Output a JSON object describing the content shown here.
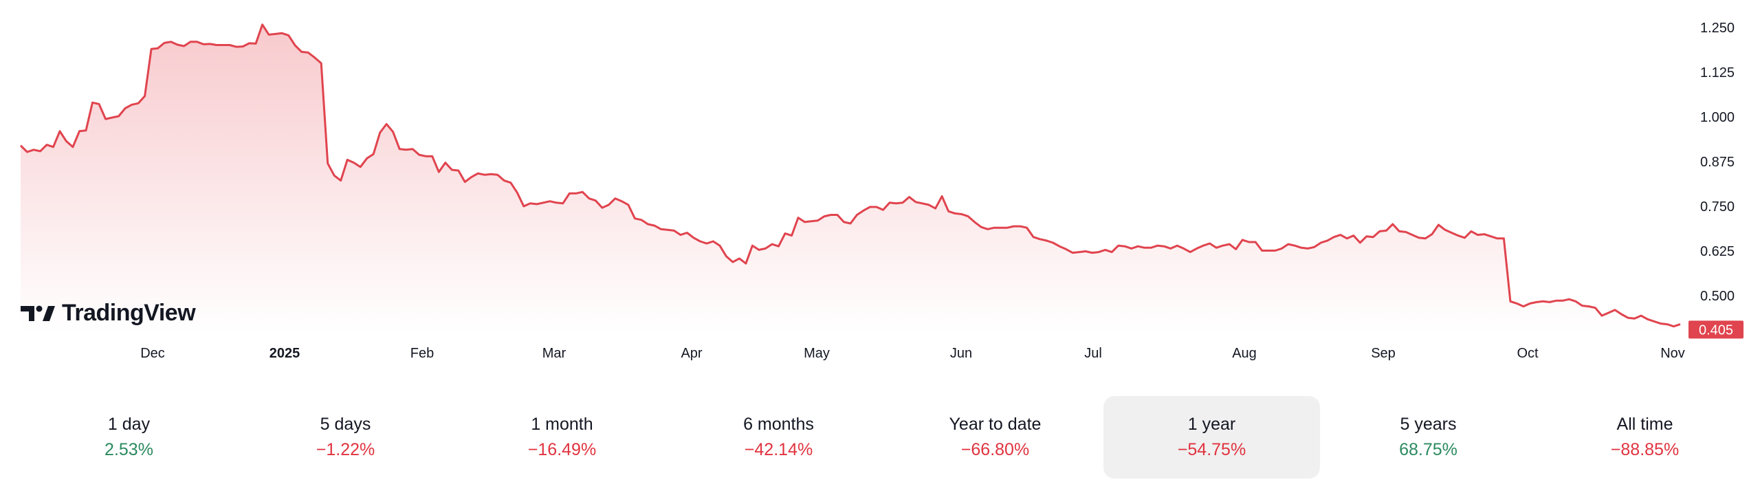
{
  "chart_data": {
    "type": "area",
    "x_ticks": [
      "Dec",
      "2025",
      "Feb",
      "Mar",
      "Apr",
      "May",
      "Jun",
      "Jul",
      "Aug",
      "Sep",
      "Oct",
      "Nov"
    ],
    "y_ticks": [
      "1.250",
      "1.125",
      "1.000",
      "0.875",
      "0.750",
      "0.625",
      "0.500"
    ],
    "ylim": [
      0.38,
      1.28
    ],
    "last_price": "0.405",
    "line_color": "#e0444e",
    "values": [
      0.92,
      0.902,
      0.908,
      0.904,
      0.922,
      0.916,
      0.96,
      0.932,
      0.916,
      0.96,
      0.962,
      1.04,
      1.036,
      0.994,
      0.998,
      1.002,
      1.024,
      1.034,
      1.038,
      1.058,
      1.19,
      1.192,
      1.207,
      1.21,
      1.202,
      1.198,
      1.21,
      1.21,
      1.203,
      1.204,
      1.201,
      1.201,
      1.201,
      1.196,
      1.197,
      1.206,
      1.205,
      1.258,
      1.23,
      1.232,
      1.234,
      1.228,
      1.2,
      1.182,
      1.18,
      1.166,
      1.15,
      0.87,
      0.836,
      0.822,
      0.88,
      0.872,
      0.86,
      0.884,
      0.896,
      0.956,
      0.98,
      0.958,
      0.91,
      0.908,
      0.91,
      0.894,
      0.89,
      0.89,
      0.846,
      0.872,
      0.852,
      0.85,
      0.818,
      0.832,
      0.842,
      0.838,
      0.84,
      0.838,
      0.822,
      0.816,
      0.788,
      0.75,
      0.758,
      0.756,
      0.76,
      0.764,
      0.76,
      0.758,
      0.786,
      0.786,
      0.79,
      0.772,
      0.766,
      0.746,
      0.754,
      0.772,
      0.764,
      0.754,
      0.716,
      0.712,
      0.7,
      0.696,
      0.686,
      0.684,
      0.682,
      0.67,
      0.676,
      0.662,
      0.652,
      0.646,
      0.652,
      0.64,
      0.61,
      0.594,
      0.604,
      0.59,
      0.64,
      0.628,
      0.632,
      0.644,
      0.638,
      0.674,
      0.668,
      0.718,
      0.706,
      0.708,
      0.71,
      0.722,
      0.726,
      0.726,
      0.706,
      0.702,
      0.726,
      0.738,
      0.748,
      0.748,
      0.74,
      0.76,
      0.758,
      0.76,
      0.776,
      0.762,
      0.758,
      0.754,
      0.744,
      0.778,
      0.736,
      0.73,
      0.728,
      0.722,
      0.706,
      0.692,
      0.686,
      0.69,
      0.69,
      0.69,
      0.694,
      0.694,
      0.69,
      0.664,
      0.658,
      0.654,
      0.648,
      0.638,
      0.63,
      0.62,
      0.622,
      0.624,
      0.62,
      0.622,
      0.628,
      0.622,
      0.64,
      0.638,
      0.632,
      0.638,
      0.634,
      0.634,
      0.64,
      0.638,
      0.632,
      0.64,
      0.632,
      0.622,
      0.632,
      0.64,
      0.646,
      0.634,
      0.64,
      0.644,
      0.63,
      0.656,
      0.65,
      0.65,
      0.626,
      0.626,
      0.626,
      0.632,
      0.644,
      0.64,
      0.634,
      0.632,
      0.636,
      0.648,
      0.654,
      0.664,
      0.67,
      0.66,
      0.668,
      0.648,
      0.666,
      0.664,
      0.68,
      0.682,
      0.7,
      0.68,
      0.678,
      0.67,
      0.662,
      0.66,
      0.672,
      0.698,
      0.684,
      0.676,
      0.668,
      0.662,
      0.68,
      0.67,
      0.672,
      0.666,
      0.66,
      0.66,
      0.484,
      0.478,
      0.47,
      0.478,
      0.482,
      0.484,
      0.482,
      0.486,
      0.486,
      0.49,
      0.484,
      0.472,
      0.47,
      0.466,
      0.444,
      0.452,
      0.46,
      0.448,
      0.438,
      0.436,
      0.444,
      0.434,
      0.428,
      0.422,
      0.42,
      0.414,
      0.42
    ]
  },
  "branding": {
    "logo_text": "TradingView"
  },
  "periods": [
    {
      "label": "1 day",
      "value": "2.53%",
      "trend": "up",
      "active": false
    },
    {
      "label": "5 days",
      "value": "−1.22%",
      "trend": "down",
      "active": false
    },
    {
      "label": "1 month",
      "value": "−16.49%",
      "trend": "down",
      "active": false
    },
    {
      "label": "6 months",
      "value": "−42.14%",
      "trend": "down",
      "active": false
    },
    {
      "label": "Year to date",
      "value": "−66.80%",
      "trend": "down",
      "active": false
    },
    {
      "label": "1 year",
      "value": "−54.75%",
      "trend": "down",
      "active": true
    },
    {
      "label": "5 years",
      "value": "68.75%",
      "trend": "up",
      "active": false
    },
    {
      "label": "All time",
      "value": "−88.85%",
      "trend": "down",
      "active": false
    }
  ]
}
